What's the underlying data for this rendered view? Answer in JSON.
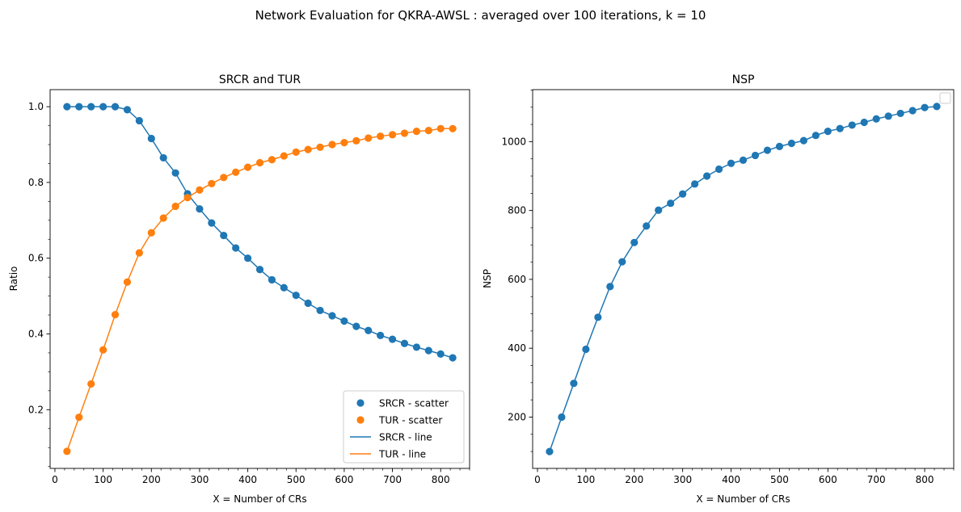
{
  "figure": {
    "title": "Network Evaluation for QKRA-AWSL : averaged over 100 iterations, k = 10"
  },
  "colors": {
    "blue": "#1f77b4",
    "orange": "#ff7f0e"
  },
  "chart_data": [
    {
      "type": "line",
      "title": "SRCR and TUR",
      "xlabel": "X = Number of CRs",
      "ylabel": "Ratio",
      "xlim": [
        -10,
        860
      ],
      "ylim": [
        0.045,
        1.045
      ],
      "xticks": [
        "0",
        "100",
        "200",
        "300",
        "400",
        "500",
        "600",
        "700",
        "800"
      ],
      "yticks": [
        "0.2",
        "0.4",
        "0.6",
        "0.8",
        "1.0"
      ],
      "x": [
        25,
        50,
        75,
        100,
        125,
        150,
        175,
        200,
        225,
        250,
        275,
        300,
        325,
        350,
        375,
        400,
        425,
        450,
        475,
        500,
        525,
        550,
        575,
        600,
        625,
        650,
        675,
        700,
        725,
        750,
        775,
        800,
        825
      ],
      "series": [
        {
          "name": "SRCR",
          "color": "#1f77b4",
          "values": [
            1.0,
            1.0,
            1.0,
            1.0,
            1.0,
            0.992,
            0.963,
            0.916,
            0.865,
            0.825,
            0.77,
            0.73,
            0.693,
            0.66,
            0.627,
            0.6,
            0.57,
            0.543,
            0.522,
            0.502,
            0.481,
            0.462,
            0.448,
            0.434,
            0.42,
            0.409,
            0.396,
            0.386,
            0.375,
            0.365,
            0.356,
            0.347,
            0.337
          ]
        },
        {
          "name": "TUR",
          "color": "#ff7f0e",
          "values": [
            0.09,
            0.18,
            0.268,
            0.358,
            0.451,
            0.537,
            0.614,
            0.667,
            0.706,
            0.737,
            0.76,
            0.78,
            0.797,
            0.813,
            0.827,
            0.84,
            0.852,
            0.86,
            0.87,
            0.88,
            0.887,
            0.893,
            0.9,
            0.905,
            0.91,
            0.917,
            0.922,
            0.926,
            0.93,
            0.935,
            0.937,
            0.942,
            0.942
          ]
        }
      ],
      "legend": {
        "position": "lower-right",
        "entries": [
          {
            "label": "SRCR - scatter",
            "kind": "marker",
            "color": "#1f77b4"
          },
          {
            "label": "TUR - scatter",
            "kind": "marker",
            "color": "#ff7f0e"
          },
          {
            "label": "SRCR - line",
            "kind": "line",
            "color": "#1f77b4"
          },
          {
            "label": "TUR - line",
            "kind": "line",
            "color": "#ff7f0e"
          }
        ]
      }
    },
    {
      "type": "line",
      "title": "NSP",
      "xlabel": "X = Number of CRs",
      "ylabel": "NSP",
      "xlim": [
        -10,
        860
      ],
      "ylim": [
        51,
        1151
      ],
      "xticks": [
        "0",
        "100",
        "200",
        "300",
        "400",
        "500",
        "600",
        "700",
        "800"
      ],
      "yticks": [
        "200",
        "400",
        "600",
        "800",
        "1000"
      ],
      "x": [
        25,
        50,
        75,
        100,
        125,
        150,
        175,
        200,
        225,
        250,
        275,
        300,
        325,
        350,
        375,
        400,
        425,
        450,
        475,
        500,
        525,
        550,
        575,
        600,
        625,
        650,
        675,
        700,
        725,
        750,
        775,
        800,
        825
      ],
      "series": [
        {
          "color": "#1f77b4",
          "values": [
            100,
            200,
            298,
            397,
            490,
            579,
            651,
            707,
            755,
            801,
            821,
            848,
            877,
            900,
            920,
            937,
            946,
            960,
            975,
            986,
            995,
            1003,
            1018,
            1030,
            1038,
            1048,
            1056,
            1066,
            1074,
            1082,
            1090,
            1099,
            1102
          ]
        }
      ],
      "legend": {
        "position": "upper-right",
        "entries": []
      }
    }
  ]
}
